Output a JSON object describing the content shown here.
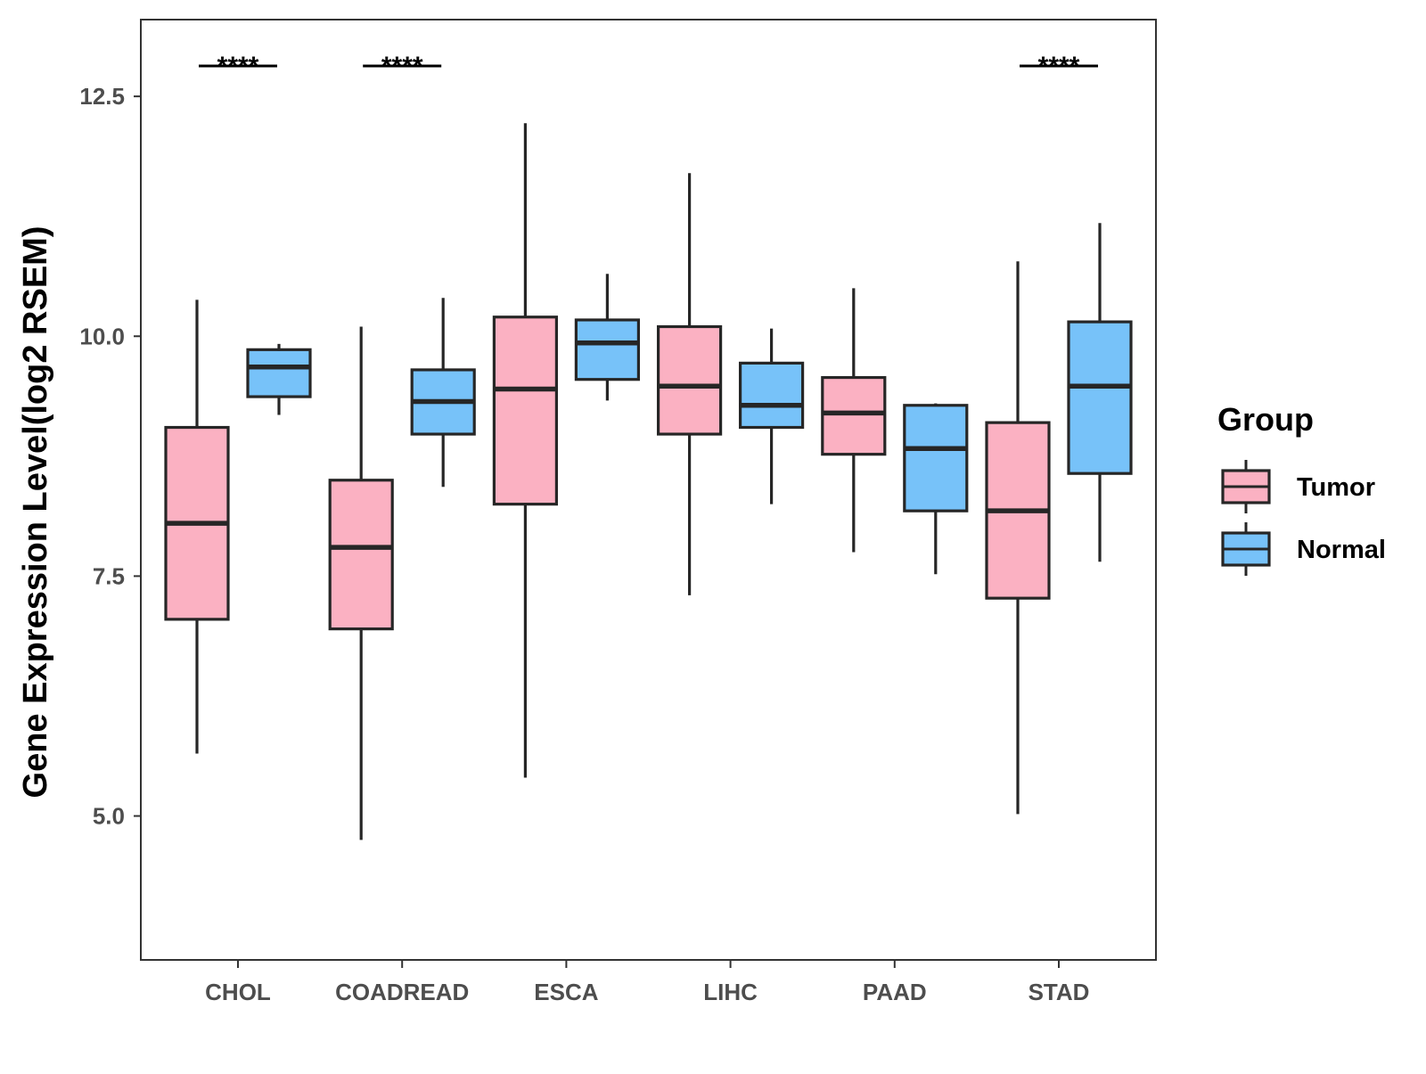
{
  "chart_data": {
    "type": "boxplot",
    "title": "",
    "xlabel": "",
    "ylabel": "Gene Expression Level(log2 RSEM)",
    "ylim": [
      3.5,
      13.3
    ],
    "yticks": [
      5.0,
      7.5,
      10.0,
      12.5
    ],
    "ytick_labels": [
      "5.0",
      "7.5",
      "10.0",
      "12.5"
    ],
    "grid": false,
    "categories": [
      "CHOL",
      "COADREAD",
      "ESCA",
      "LIHC",
      "PAAD",
      "STAD"
    ],
    "legend": {
      "title": "Group",
      "placement": "right",
      "entries": [
        "Tumor",
        "Normal"
      ]
    },
    "colors": {
      "Tumor": "#fbb1c2",
      "Normal": "#77c2f9",
      "outline": "#262626"
    },
    "series": [
      {
        "name": "Tumor",
        "boxes": [
          {
            "category": "CHOL",
            "whisker_low": 5.65,
            "q1": 7.05,
            "median": 8.05,
            "q3": 9.05,
            "whisker_high": 10.38
          },
          {
            "category": "COADREAD",
            "whisker_low": 4.75,
            "q1": 6.95,
            "median": 7.8,
            "q3": 8.5,
            "whisker_high": 10.1
          },
          {
            "category": "ESCA",
            "whisker_low": 5.4,
            "q1": 8.25,
            "median": 9.45,
            "q3": 10.2,
            "whisker_high": 12.22
          },
          {
            "category": "LIHC",
            "whisker_low": 7.3,
            "q1": 8.98,
            "median": 9.48,
            "q3": 10.1,
            "whisker_high": 11.7
          },
          {
            "category": "PAAD",
            "whisker_low": 7.75,
            "q1": 8.77,
            "median": 9.2,
            "q3": 9.57,
            "whisker_high": 10.5
          },
          {
            "category": "STAD",
            "whisker_low": 5.02,
            "q1": 7.27,
            "median": 8.18,
            "q3": 9.1,
            "whisker_high": 10.78
          }
        ]
      },
      {
        "name": "Normal",
        "boxes": [
          {
            "category": "CHOL",
            "whisker_low": 9.18,
            "q1": 9.37,
            "median": 9.68,
            "q3": 9.86,
            "whisker_high": 9.92
          },
          {
            "category": "COADREAD",
            "whisker_low": 8.43,
            "q1": 8.98,
            "median": 9.32,
            "q3": 9.65,
            "whisker_high": 10.4
          },
          {
            "category": "ESCA",
            "whisker_low": 9.33,
            "q1": 9.55,
            "median": 9.93,
            "q3": 10.17,
            "whisker_high": 10.65
          },
          {
            "category": "LIHC",
            "whisker_low": 8.25,
            "q1": 9.05,
            "median": 9.28,
            "q3": 9.72,
            "whisker_high": 10.08
          },
          {
            "category": "PAAD",
            "whisker_low": 7.52,
            "q1": 8.18,
            "median": 8.83,
            "q3": 9.28,
            "whisker_high": 9.3
          },
          {
            "category": "STAD",
            "whisker_low": 7.65,
            "q1": 8.57,
            "median": 9.48,
            "q3": 10.15,
            "whisker_high": 11.18
          }
        ]
      }
    ],
    "annotations": [
      {
        "category": "CHOL",
        "label": "****"
      },
      {
        "category": "COADREAD",
        "label": "****"
      },
      {
        "category": "STAD",
        "label": "****"
      }
    ]
  }
}
